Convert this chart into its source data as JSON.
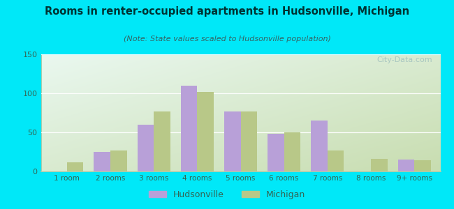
{
  "title": "Rooms in renter-occupied apartments in Hudsonville, Michigan",
  "subtitle": "(Note: State values scaled to Hudsonville population)",
  "categories": [
    "1 room",
    "2 rooms",
    "3 rooms",
    "4 rooms",
    "5 rooms",
    "6 rooms",
    "7 rooms",
    "8 rooms",
    "9+ rooms"
  ],
  "hudsonville": [
    0,
    25,
    60,
    110,
    77,
    48,
    65,
    0,
    15
  ],
  "michigan": [
    12,
    27,
    77,
    102,
    77,
    50,
    27,
    16,
    14
  ],
  "hudsonville_color": "#b8a0d8",
  "michigan_color": "#b8c888",
  "background_outer": "#00e8f8",
  "background_inner_topleft": "#eaf8f0",
  "background_inner_bottomright": "#c8ddb0",
  "ylim": [
    0,
    150
  ],
  "yticks": [
    0,
    50,
    100,
    150
  ],
  "bar_width": 0.38,
  "legend_hudsonville": "Hudsonville",
  "legend_michigan": "Michigan",
  "watermark": "City-Data.com",
  "title_color": "#003333",
  "subtitle_color": "#336666",
  "tick_color": "#336655"
}
